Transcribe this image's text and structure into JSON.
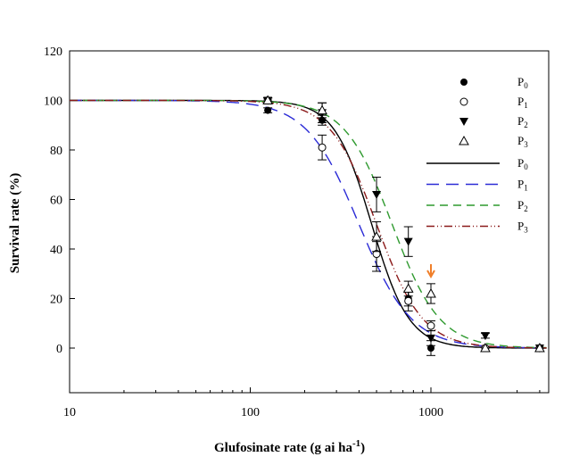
{
  "chart_data": {
    "type": "scatter",
    "xlabel": "Glufosinate rate (g ai ha",
    "xlabel_sup": "-1",
    "xlabel_end": ")",
    "ylabel": "Survival rate (%)",
    "xscale": "log",
    "xlim": [
      10,
      4600
    ],
    "ylim": [
      -18,
      120
    ],
    "xticks": [
      10,
      100,
      1000
    ],
    "xtick_labels": [
      "10",
      "100",
      "1000"
    ],
    "yticks": [
      0,
      20,
      40,
      60,
      80,
      100,
      120
    ],
    "ytick_labels": [
      "0",
      "20",
      "40",
      "60",
      "80",
      "100",
      "120"
    ],
    "grid": false,
    "legend_placement": "top-right",
    "x": [
      125,
      250,
      500,
      750,
      1000,
      2000,
      4000
    ],
    "series": [
      {
        "name": "P",
        "sub": "0",
        "marker": "filled-circle",
        "values": [
          96,
          92,
          38,
          20,
          0,
          0,
          0
        ],
        "errors": [
          1,
          2,
          5,
          3,
          3,
          0,
          0
        ]
      },
      {
        "name": "P",
        "sub": "1",
        "marker": "open-circle",
        "values": [
          100,
          81,
          38,
          19,
          9,
          0,
          0
        ],
        "errors": [
          1,
          5,
          7,
          4,
          2,
          0,
          0
        ]
      },
      {
        "name": "P",
        "sub": "2",
        "marker": "filled-triangle-down",
        "values": [
          100,
          95,
          62,
          43,
          4,
          5,
          0
        ],
        "errors": [
          1,
          4,
          7,
          6,
          3,
          1,
          0
        ]
      },
      {
        "name": "P",
        "sub": "3",
        "marker": "open-triangle-up",
        "values": [
          100,
          96,
          45,
          24,
          22,
          0,
          0
        ],
        "errors": [
          1,
          3,
          6,
          3,
          4,
          0,
          0
        ]
      }
    ],
    "fits": [
      {
        "name": "P",
        "sub": "0",
        "color": "#000000",
        "dash": "solid",
        "ed50": 470,
        "slope": 4.2
      },
      {
        "name": "P",
        "sub": "1",
        "color": "#2b2bd6",
        "dash": "long-dash",
        "ed50": 400,
        "slope": 3.0
      },
      {
        "name": "P",
        "sub": "2",
        "color": "#2f9a2f",
        "dash": "dash",
        "ed50": 610,
        "slope": 3.3
      },
      {
        "name": "P",
        "sub": "3",
        "color": "#8b1a1a",
        "dash": "dash-dot-dot",
        "ed50": 500,
        "slope": 3.4
      }
    ],
    "annotation": {
      "type": "arrow",
      "x": 1000,
      "color": "#f07f2a"
    }
  }
}
